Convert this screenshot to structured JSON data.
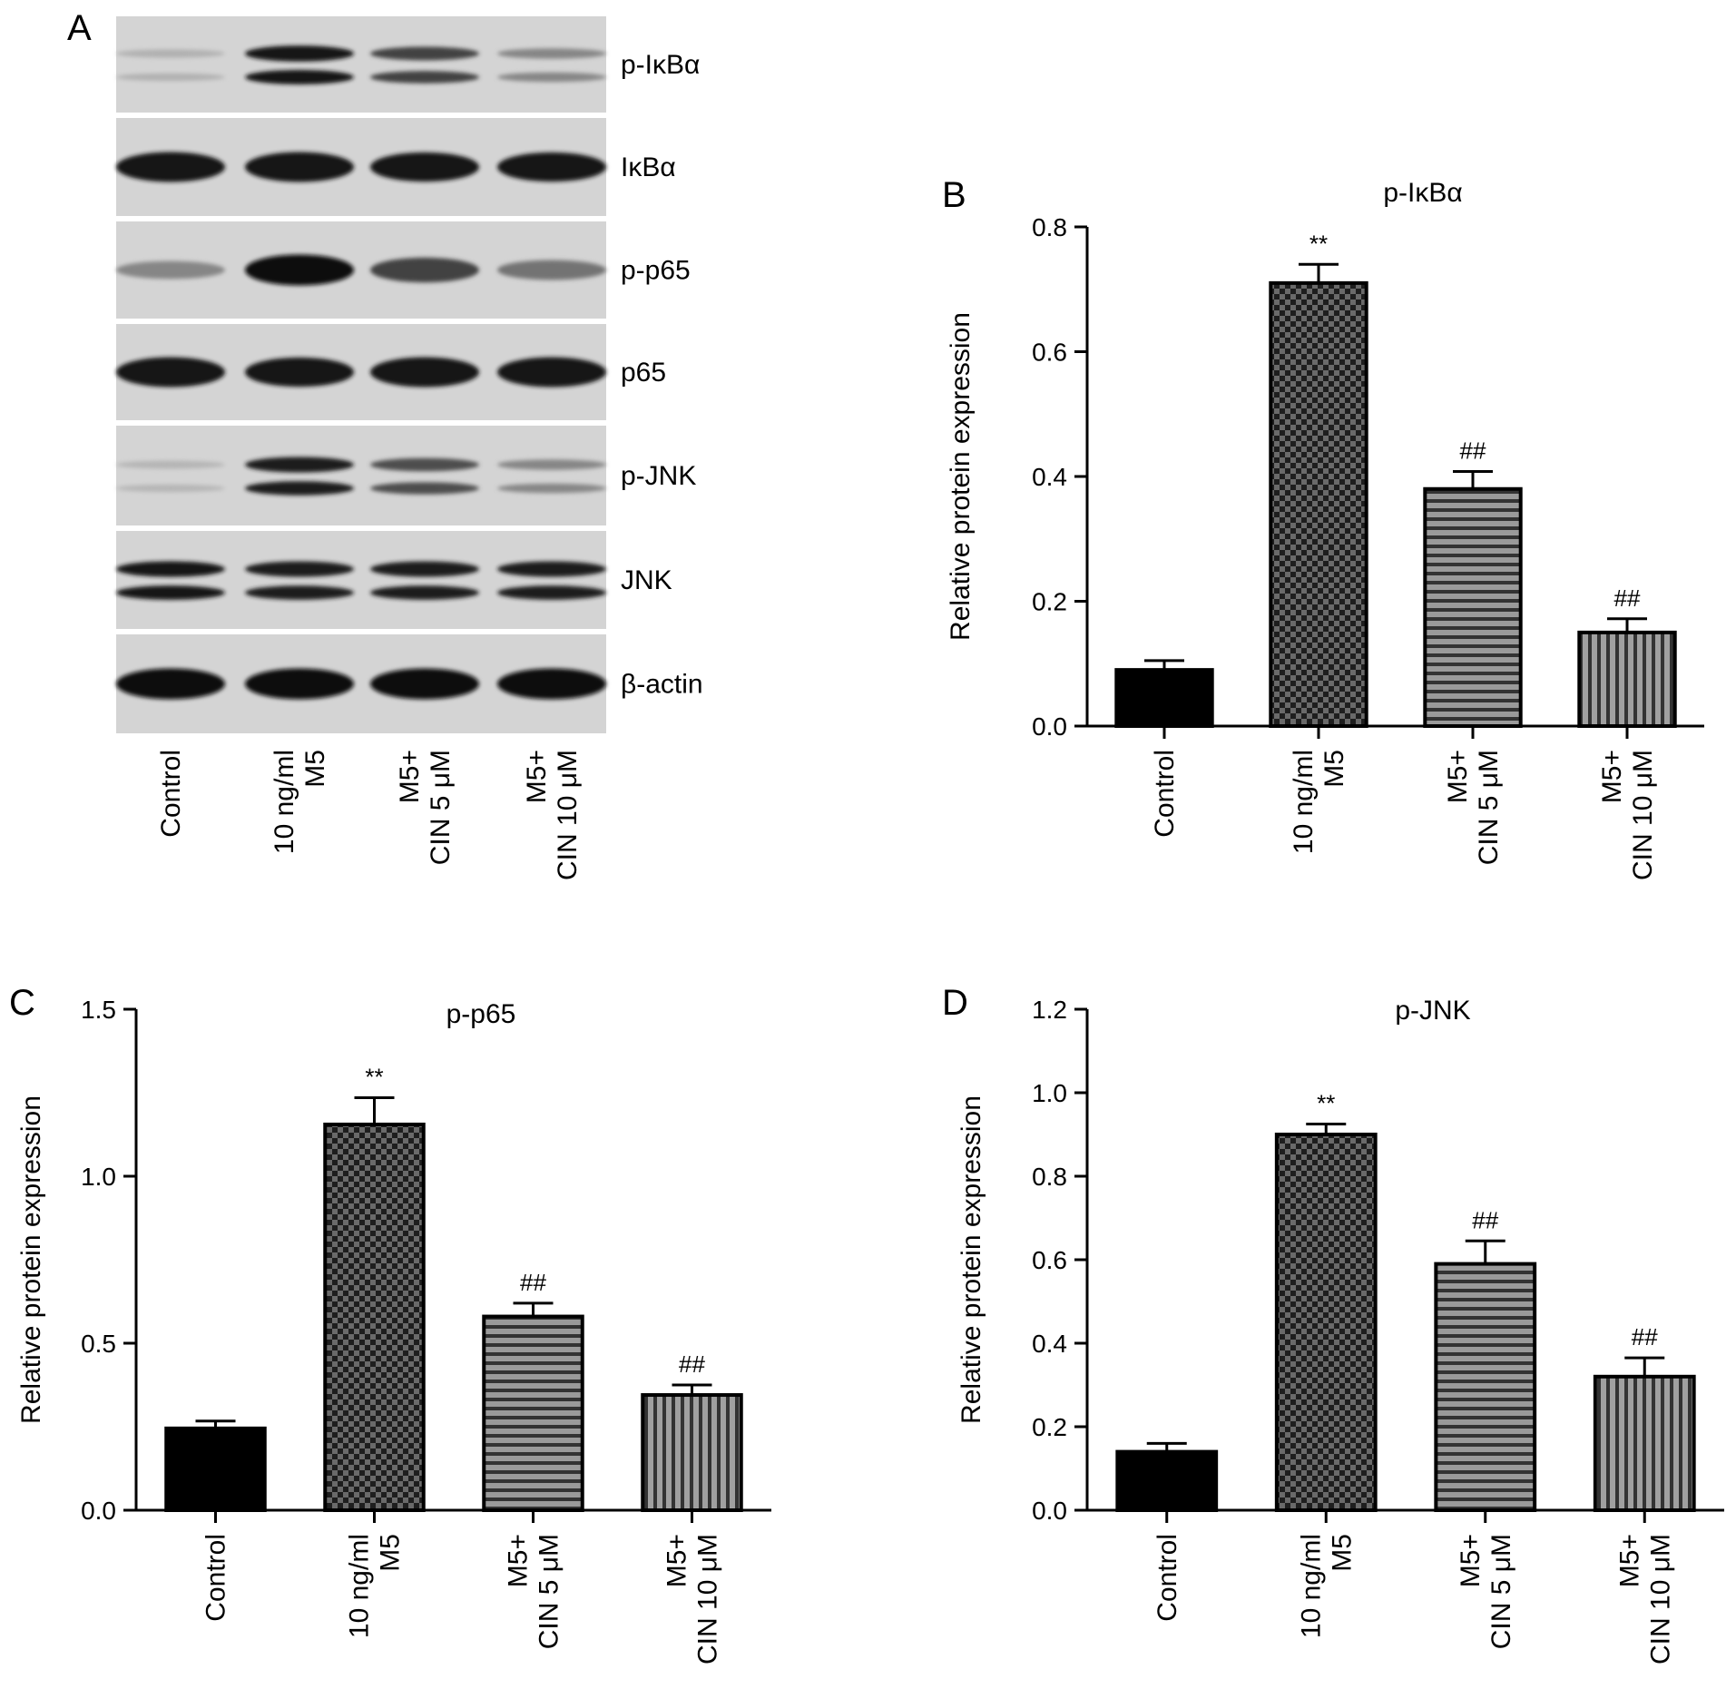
{
  "panels": {
    "a": {
      "letter": "A",
      "blots": [
        {
          "label": "p-IκBα",
          "intensity": [
            0.12,
            0.95,
            0.7,
            0.35
          ],
          "doublet": true
        },
        {
          "label": "IκBα",
          "intensity": [
            0.95,
            0.95,
            0.92,
            0.92
          ],
          "doublet": false
        },
        {
          "label": "p-p65",
          "intensity": [
            0.35,
            1.0,
            0.7,
            0.45
          ],
          "doublet": false
        },
        {
          "label": "p65",
          "intensity": [
            0.95,
            0.92,
            0.95,
            0.95
          ],
          "doublet": false
        },
        {
          "label": "p-JNK",
          "intensity": [
            0.1,
            0.9,
            0.65,
            0.35
          ],
          "doublet": true
        },
        {
          "label": "JNK",
          "intensity": [
            0.92,
            0.9,
            0.9,
            0.9
          ],
          "doublet": true
        },
        {
          "label": "β-actin",
          "intensity": [
            1.0,
            1.0,
            1.0,
            1.0
          ],
          "doublet": false
        }
      ],
      "lanes": [
        [
          "Control"
        ],
        [
          "10 ng/ml",
          "M5"
        ],
        [
          "M5+",
          "CIN 5 μM"
        ],
        [
          "M5+",
          "CIN 10 μM"
        ]
      ]
    },
    "b": {
      "letter": "B"
    },
    "c": {
      "letter": "C"
    },
    "d": {
      "letter": "D"
    }
  },
  "chart_data": [
    {
      "type": "bar",
      "panel": "B",
      "title": "p-IκBα",
      "xlabel": "",
      "ylabel": "Relative protein expression",
      "categories": [
        [
          "Control"
        ],
        [
          "10 ng/ml",
          "M5"
        ],
        [
          "M5+",
          "CIN 5 μM"
        ],
        [
          "M5+",
          "CIN 10 μM"
        ]
      ],
      "values": [
        0.09,
        0.71,
        0.38,
        0.15
      ],
      "errors": [
        0.015,
        0.03,
        0.028,
        0.022
      ],
      "annotations": [
        "",
        "**",
        "##",
        "##"
      ],
      "ylim": [
        0,
        0.8
      ],
      "yticks": [
        "0.0",
        "0.2",
        "0.4",
        "0.6",
        "0.8"
      ],
      "patterns": [
        "solid",
        "checker",
        "horizontal",
        "vertical"
      ]
    },
    {
      "type": "bar",
      "panel": "C",
      "title": "p-p65",
      "xlabel": "",
      "ylabel": "Relative protein expression",
      "categories": [
        [
          "Control"
        ],
        [
          "10 ng/ml",
          "M5"
        ],
        [
          "M5+",
          "CIN 5 μM"
        ],
        [
          "M5+",
          "CIN 10 μM"
        ]
      ],
      "values": [
        0.245,
        1.155,
        0.58,
        0.345
      ],
      "errors": [
        0.022,
        0.08,
        0.04,
        0.03
      ],
      "annotations": [
        "",
        "**",
        "##",
        "##"
      ],
      "ylim": [
        0,
        1.5
      ],
      "yticks": [
        "0.0",
        "0.5",
        "1.0",
        "1.5"
      ],
      "patterns": [
        "solid",
        "checker",
        "horizontal",
        "vertical"
      ]
    },
    {
      "type": "bar",
      "panel": "D",
      "title": "p-JNK",
      "xlabel": "",
      "ylabel": "Relative protein expression",
      "categories": [
        [
          "Control"
        ],
        [
          "10 ng/ml",
          "M5"
        ],
        [
          "M5+",
          "CIN 5 μM"
        ],
        [
          "M5+",
          "CIN 10 μM"
        ]
      ],
      "values": [
        0.14,
        0.9,
        0.59,
        0.32
      ],
      "errors": [
        0.02,
        0.025,
        0.055,
        0.045
      ],
      "annotations": [
        "",
        "**",
        "##",
        "##"
      ],
      "ylim": [
        0,
        1.2
      ],
      "yticks": [
        "0.0",
        "0.2",
        "0.4",
        "0.6",
        "0.8",
        "1.0",
        "1.2"
      ],
      "patterns": [
        "solid",
        "checker",
        "horizontal",
        "vertical"
      ]
    }
  ]
}
